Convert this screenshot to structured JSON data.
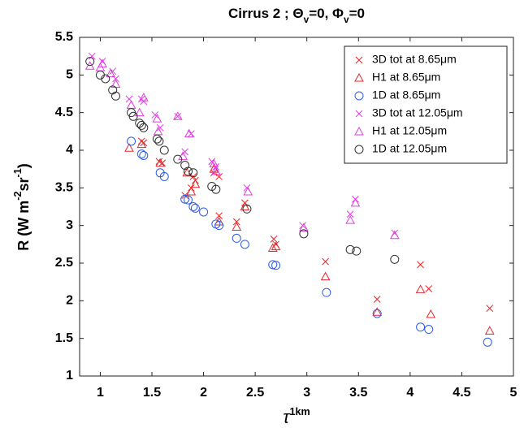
{
  "chart_data": {
    "type": "scatter",
    "title": [
      "Cirrus 2 ; Θ",
      "v",
      "=0, Φ",
      "v",
      "=0"
    ],
    "y_label": [
      "R (W m",
      "-2",
      "sr",
      "-1",
      ")"
    ],
    "x_label": [
      "τ",
      "1km"
    ],
    "xlim": [
      0.8,
      5
    ],
    "ylim": [
      1,
      5.5
    ],
    "xticks": [
      1,
      1.5,
      2,
      2.5,
      3,
      3.5,
      4,
      4.5,
      5
    ],
    "yticks": [
      1,
      1.5,
      2,
      2.5,
      3,
      3.5,
      4,
      4.5,
      5,
      5.5
    ],
    "legend": "upper right",
    "series": [
      {
        "name": "3D tot at 8.65μm",
        "marker": "x",
        "color": "#e8262a",
        "x": [
          1.4,
          1.42,
          1.57,
          1.6,
          1.82,
          1.88,
          1.9,
          1.92,
          2.1,
          2.15,
          2.15,
          2.32,
          2.4,
          2.68,
          2.7,
          3.18,
          3.68,
          4.1,
          4.18,
          4.77
        ],
        "values": [
          4.12,
          4.1,
          3.85,
          3.83,
          3.4,
          3.5,
          3.65,
          3.6,
          3.7,
          3.65,
          3.13,
          3.05,
          3.3,
          2.82,
          2.75,
          2.52,
          2.02,
          2.48,
          2.16,
          1.9
        ]
      },
      {
        "name": "H1 at 8.65μm",
        "marker": "triangle",
        "color": "#e8262a",
        "x": [
          1.28,
          1.4,
          1.58,
          1.84,
          1.88,
          1.92,
          2.1,
          2.15,
          2.32,
          2.4,
          2.67,
          2.7,
          3.18,
          3.68,
          4.1,
          4.2,
          4.77
        ],
        "values": [
          4.03,
          4.08,
          3.83,
          3.7,
          3.45,
          3.55,
          3.75,
          3.05,
          2.98,
          3.25,
          2.7,
          2.72,
          2.32,
          1.85,
          2.15,
          1.82,
          1.6
        ]
      },
      {
        "name": "1D at 8.65μm",
        "marker": "circle",
        "color": "#2e5ce6",
        "x": [
          1.3,
          1.4,
          1.42,
          1.58,
          1.62,
          1.82,
          1.85,
          1.9,
          1.92,
          2.0,
          2.12,
          2.15,
          2.32,
          2.4,
          2.67,
          2.7,
          3.19,
          3.68,
          4.1,
          4.18,
          4.75
        ],
        "values": [
          4.12,
          3.95,
          3.93,
          3.7,
          3.65,
          3.35,
          3.34,
          3.25,
          3.23,
          3.18,
          3.02,
          3.0,
          2.83,
          2.75,
          2.48,
          2.47,
          2.11,
          1.83,
          1.65,
          1.62,
          1.45
        ]
      },
      {
        "name": "3D tot at 12.05μm",
        "marker": "x",
        "color": "#e33be3",
        "x": [
          0.92,
          1.02,
          1.12,
          1.15,
          1.28,
          1.4,
          1.42,
          1.53,
          1.58,
          1.75,
          1.82,
          1.88,
          2.08,
          2.12,
          2.42,
          2.96,
          3.42,
          3.47,
          3.85
        ],
        "values": [
          5.25,
          5.18,
          5.05,
          4.95,
          4.68,
          4.68,
          4.65,
          4.47,
          4.3,
          4.45,
          3.98,
          4.22,
          3.85,
          3.78,
          3.5,
          3.0,
          3.15,
          3.35,
          2.9
        ]
      },
      {
        "name": "H1 at 12.05μm",
        "marker": "triangle",
        "color": "#e33be3",
        "x": [
          0.9,
          1.0,
          1.02,
          1.1,
          1.15,
          1.3,
          1.38,
          1.42,
          1.55,
          1.56,
          1.75,
          1.8,
          1.86,
          2.1,
          2.12,
          2.43,
          2.97,
          3.42,
          3.47,
          3.85
        ],
        "values": [
          5.12,
          5.1,
          5.15,
          5.02,
          4.88,
          4.6,
          4.5,
          4.7,
          4.42,
          4.25,
          4.45,
          3.92,
          4.22,
          3.82,
          3.72,
          3.45,
          2.97,
          3.07,
          3.3,
          2.87
        ]
      },
      {
        "name": "1D at 12.05μm",
        "marker": "circle",
        "color": "#333333",
        "x": [
          0.9,
          1.0,
          1.05,
          1.12,
          1.15,
          1.3,
          1.32,
          1.38,
          1.4,
          1.42,
          1.55,
          1.57,
          1.62,
          1.75,
          1.82,
          1.85,
          1.9,
          2.08,
          2.12,
          2.42,
          2.97,
          3.42,
          3.48,
          3.85
        ],
        "values": [
          5.18,
          5.0,
          4.95,
          4.8,
          4.72,
          4.5,
          4.45,
          4.36,
          4.33,
          4.3,
          4.15,
          4.12,
          4.0,
          3.88,
          3.8,
          3.72,
          3.7,
          3.52,
          3.48,
          3.22,
          2.89,
          2.68,
          2.66,
          2.55
        ]
      }
    ]
  }
}
